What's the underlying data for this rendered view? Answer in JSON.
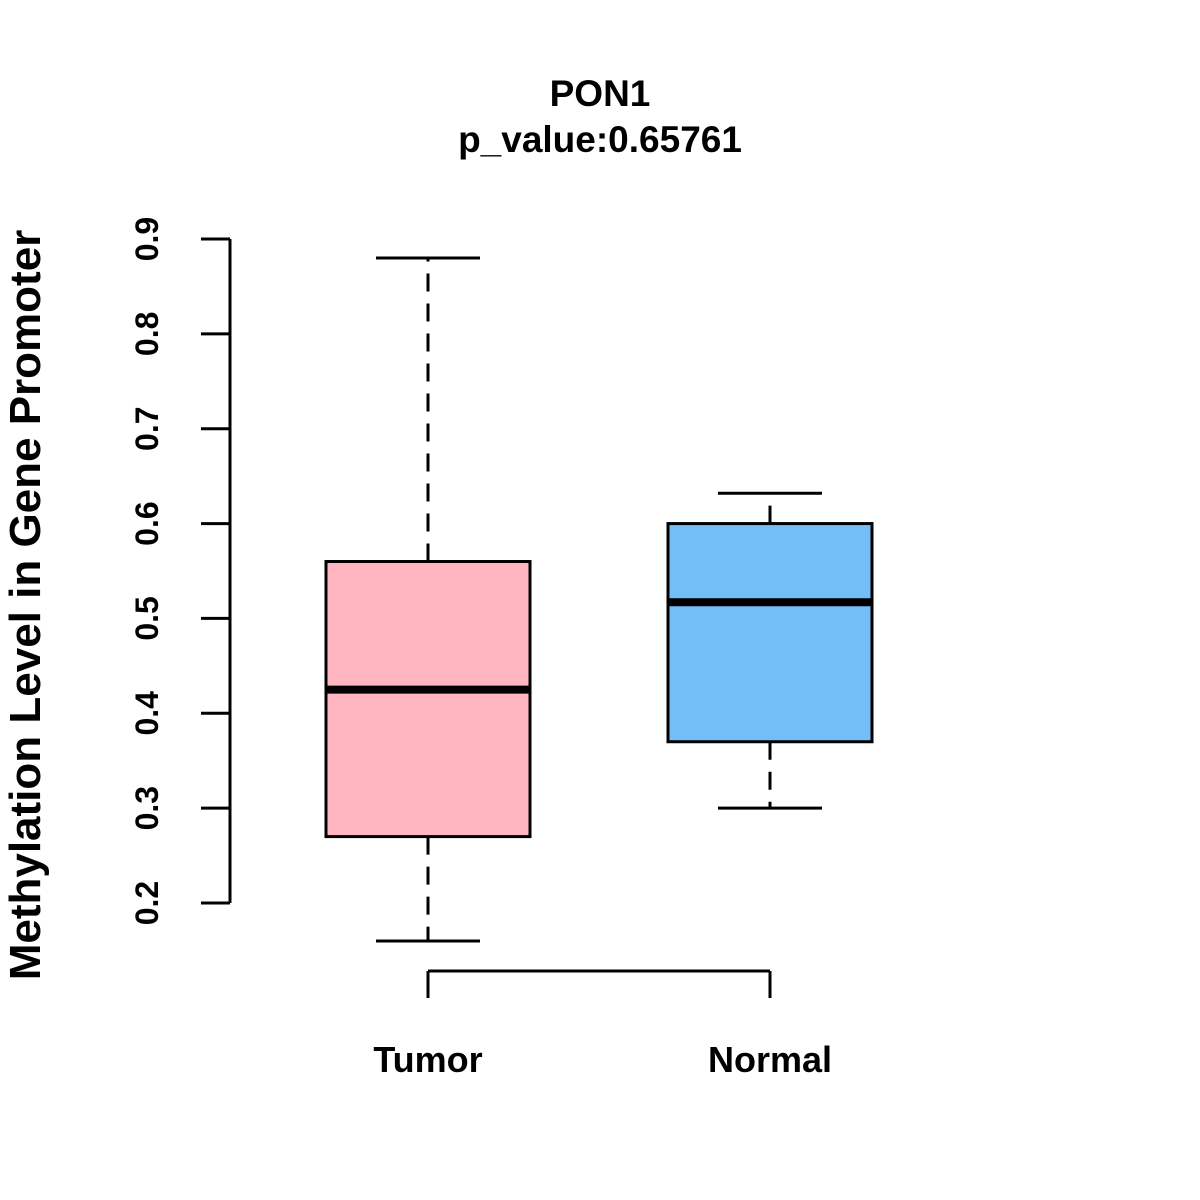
{
  "page": {
    "background_color": "#FFFFFF",
    "text_color": "#000000"
  },
  "chart_data": {
    "type": "boxplot",
    "title": "PON1",
    "subtitle": "p_value:0.65761",
    "p_value": "0.65761",
    "gene": "PON1",
    "ylabel": "Methylation Level in Gene Promoter",
    "xlabel": "",
    "categories": [
      "Tumor",
      "Normal"
    ],
    "ylim": [
      0.2,
      0.9
    ],
    "yticks": [
      0.2,
      0.3,
      0.4,
      0.5,
      0.6,
      0.7,
      0.8,
      0.9
    ],
    "grid": false,
    "legend": "none",
    "axis_color": "#000000",
    "series": [
      {
        "name": "Tumor",
        "box_color": "#FFB6C1",
        "border_color": "#000000",
        "whisker_low": 0.16,
        "q1": 0.27,
        "median": 0.425,
        "q3": 0.56,
        "whisker_high": 0.88
      },
      {
        "name": "Normal",
        "box_color": "#74BEF8",
        "border_color": "#000000",
        "whisker_low": 0.3,
        "q1": 0.37,
        "median": 0.517,
        "q3": 0.6,
        "whisker_high": 0.632
      }
    ]
  }
}
